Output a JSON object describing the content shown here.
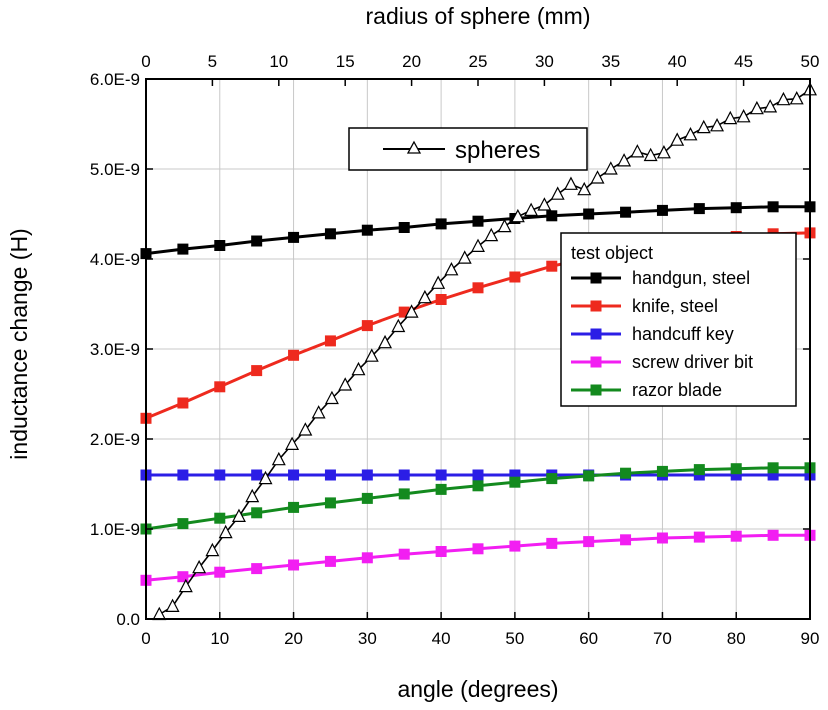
{
  "chart_data": {
    "type": "line",
    "xlabel": "angle (degrees)",
    "x2label": "radius of sphere (mm)",
    "ylabel": "inductance change (H)",
    "xlim": [
      0,
      90
    ],
    "x2lim": [
      0,
      50
    ],
    "ylim": [
      0,
      6e-09
    ],
    "grid": true,
    "x_ticks": [
      0,
      10,
      20,
      30,
      40,
      50,
      60,
      70,
      80,
      90
    ],
    "x2_ticks": [
      0,
      5,
      10,
      15,
      20,
      25,
      30,
      35,
      40,
      45,
      50
    ],
    "y_ticks": [
      {
        "value": 0,
        "label": "0.0"
      },
      {
        "value": 1e-09,
        "label": "1.0E-9"
      },
      {
        "value": 2e-09,
        "label": "2.0E-9"
      },
      {
        "value": 3e-09,
        "label": "3.0E-9"
      },
      {
        "value": 4e-09,
        "label": "4.0E-9"
      },
      {
        "value": 5e-09,
        "label": "5.0E-9"
      },
      {
        "value": 6e-09,
        "label": "6.0E-9"
      }
    ],
    "legend_title": "test object",
    "legend_position": "right",
    "series": [
      {
        "name": "handgun, steel",
        "color": "#000000",
        "marker": "square",
        "x": [
          0,
          5,
          10,
          15,
          20,
          25,
          30,
          35,
          40,
          45,
          50,
          55,
          60,
          65,
          70,
          75,
          80,
          85,
          90
        ],
        "y": [
          4.06e-09,
          4.11e-09,
          4.15e-09,
          4.2e-09,
          4.24e-09,
          4.28e-09,
          4.32e-09,
          4.35e-09,
          4.39e-09,
          4.42e-09,
          4.45e-09,
          4.48e-09,
          4.5e-09,
          4.52e-09,
          4.54e-09,
          4.56e-09,
          4.57e-09,
          4.58e-09,
          4.58e-09
        ]
      },
      {
        "name": "knife, steel",
        "color": "#ee2a1e",
        "marker": "square",
        "x": [
          0,
          5,
          10,
          15,
          20,
          25,
          30,
          35,
          40,
          45,
          50,
          55,
          60,
          65,
          70,
          75,
          80,
          85,
          90
        ],
        "y": [
          2.23e-09,
          2.4e-09,
          2.58e-09,
          2.76e-09,
          2.93e-09,
          3.09e-09,
          3.26e-09,
          3.41e-09,
          3.55e-09,
          3.68e-09,
          3.8e-09,
          3.92e-09,
          4.01e-09,
          4.08e-09,
          4.15e-09,
          4.21e-09,
          4.25e-09,
          4.28e-09,
          4.29e-09
        ]
      },
      {
        "name": "handcuff key",
        "color": "#2b1ee6",
        "marker": "square",
        "x": [
          0,
          5,
          10,
          15,
          20,
          25,
          30,
          35,
          40,
          45,
          50,
          55,
          60,
          65,
          70,
          75,
          80,
          85,
          90
        ],
        "y": [
          1.6e-09,
          1.6e-09,
          1.6e-09,
          1.6e-09,
          1.6e-09,
          1.6e-09,
          1.6e-09,
          1.6e-09,
          1.6e-09,
          1.6e-09,
          1.6e-09,
          1.6e-09,
          1.6e-09,
          1.6e-09,
          1.6e-09,
          1.6e-09,
          1.6e-09,
          1.6e-09,
          1.6e-09
        ]
      },
      {
        "name": "screw driver bit",
        "color": "#f21ef2",
        "marker": "square",
        "x": [
          0,
          5,
          10,
          15,
          20,
          25,
          30,
          35,
          40,
          45,
          50,
          55,
          60,
          65,
          70,
          75,
          80,
          85,
          90
        ],
        "y": [
          4.3e-10,
          4.7e-10,
          5.2e-10,
          5.6e-10,
          6e-10,
          6.4e-10,
          6.8e-10,
          7.2e-10,
          7.5e-10,
          7.8e-10,
          8.1e-10,
          8.4e-10,
          8.6e-10,
          8.8e-10,
          9e-10,
          9.1e-10,
          9.2e-10,
          9.3e-10,
          9.3e-10
        ]
      },
      {
        "name": "razor blade",
        "color": "#138a1e",
        "marker": "square",
        "x": [
          0,
          5,
          10,
          15,
          20,
          25,
          30,
          35,
          40,
          45,
          50,
          55,
          60,
          65,
          70,
          75,
          80,
          85,
          90
        ],
        "y": [
          1e-09,
          1.06e-09,
          1.12e-09,
          1.18e-09,
          1.24e-09,
          1.29e-09,
          1.34e-09,
          1.39e-09,
          1.44e-09,
          1.48e-09,
          1.52e-09,
          1.56e-09,
          1.59e-09,
          1.62e-09,
          1.64e-09,
          1.66e-09,
          1.67e-09,
          1.68e-09,
          1.68e-09
        ]
      },
      {
        "name": "spheres",
        "color": "#000000",
        "marker": "open-triangle",
        "axis": "top",
        "x": [
          1,
          2,
          3,
          4,
          5,
          6,
          7,
          8,
          9,
          10,
          11,
          12,
          13,
          14,
          15,
          16,
          17,
          18,
          19,
          20,
          21,
          22,
          23,
          24,
          25,
          26,
          27,
          28,
          29,
          30,
          31,
          32,
          33,
          34,
          35,
          36,
          37,
          38,
          39,
          40,
          41,
          42,
          43,
          44,
          45,
          46,
          47,
          48,
          49,
          50
        ],
        "y": [
          5e-11,
          1.4e-10,
          3.6e-10,
          5.7e-10,
          7.6e-10,
          9.6e-10,
          1.14e-09,
          1.36e-09,
          1.56e-09,
          1.77e-09,
          1.94e-09,
          2.1e-09,
          2.29e-09,
          2.45e-09,
          2.6e-09,
          2.77e-09,
          2.92e-09,
          3.07e-09,
          3.25e-09,
          3.41e-09,
          3.57e-09,
          3.73e-09,
          3.88e-09,
          4.01e-09,
          4.14e-09,
          4.26e-09,
          4.36e-09,
          4.47e-09,
          4.54e-09,
          4.6e-09,
          4.72e-09,
          4.83e-09,
          4.77e-09,
          4.9e-09,
          5e-09,
          5.09e-09,
          5.19e-09,
          5.15e-09,
          5.18e-09,
          5.32e-09,
          5.38e-09,
          5.46e-09,
          5.48e-09,
          5.56e-09,
          5.58e-09,
          5.67e-09,
          5.69e-09,
          5.77e-09,
          5.78e-09,
          5.88e-09
        ]
      }
    ]
  }
}
